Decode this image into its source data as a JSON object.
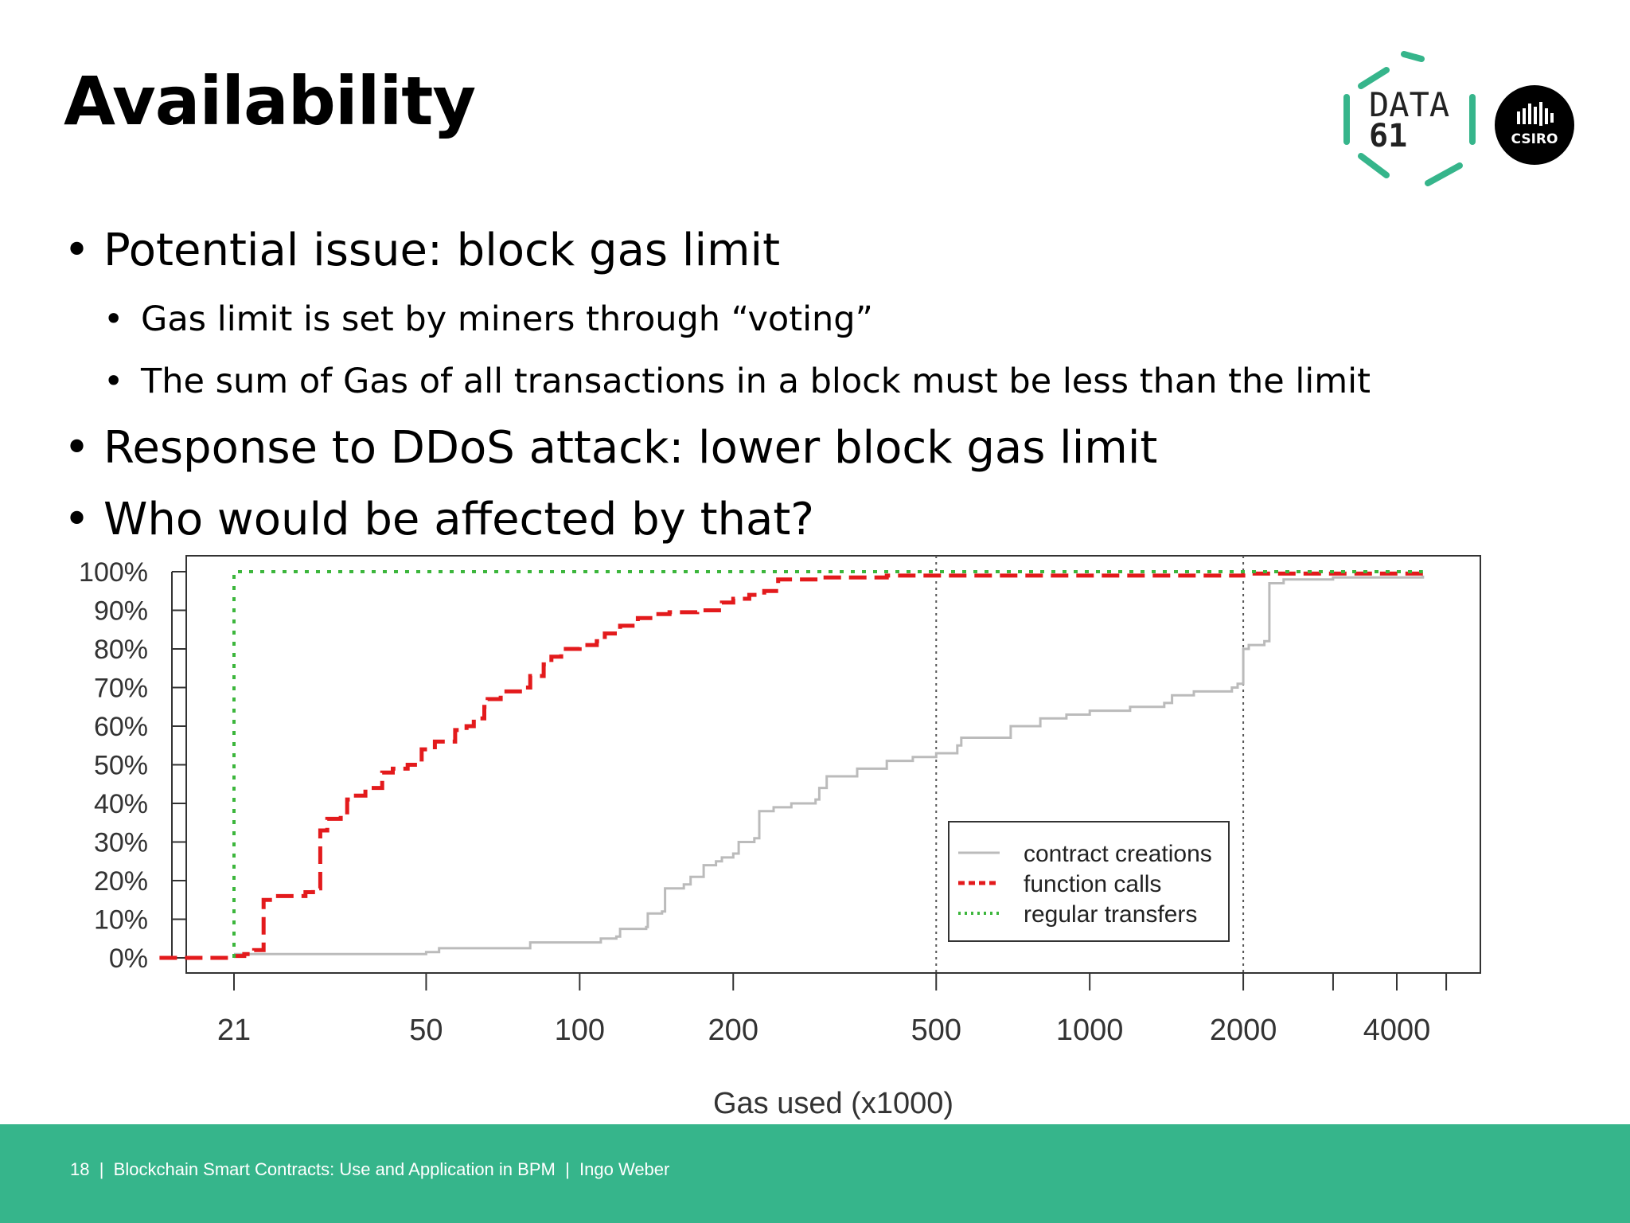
{
  "slide": {
    "title": "Availability",
    "bullets": [
      {
        "level": 1,
        "text": "Potential issue: block gas limit"
      },
      {
        "level": 2,
        "text": "Gas limit is set by miners through “voting”"
      },
      {
        "level": 2,
        "text": "The sum of Gas of all transactions in a block must be less than the limit"
      },
      {
        "level": 1,
        "text": "Response to DDoS attack: lower block gas limit"
      },
      {
        "level": 1,
        "text": "Who would be affected by that?"
      }
    ],
    "bullet_glyph": "•",
    "logos": {
      "data61_line1": "DATA",
      "data61_line2": "61",
      "csiro": "CSIRO"
    },
    "footer": {
      "page_number": "18",
      "text": "Blockchain Smart Contracts: Use and Application in BPM",
      "author": "Ingo Weber",
      "separator": "|"
    },
    "colors": {
      "footer_bg": "#36b58b",
      "data61_green": "#36b58b",
      "csiro_black": "#000000"
    }
  },
  "chart_data": {
    "type": "line",
    "title": "",
    "xlabel": "Gas used (x1000)",
    "ylabel": "",
    "x_scale": "log",
    "xlim": [
      15,
      5000
    ],
    "ylim": [
      0,
      100
    ],
    "x_ticks": [
      21,
      50,
      100,
      200,
      500,
      1000,
      2000,
      4000
    ],
    "x_minor_ticks": [
      3000,
      5000
    ],
    "y_ticks": [
      0,
      10,
      20,
      30,
      40,
      50,
      60,
      70,
      80,
      90,
      100
    ],
    "y_tick_labels": [
      "0%",
      "10%",
      "20%",
      "30%",
      "40%",
      "50%",
      "60%",
      "70%",
      "80%",
      "90%",
      "100%"
    ],
    "reference_lines_x": [
      500,
      2000
    ],
    "legend_position": "bottom-right",
    "series": [
      {
        "name": "contract creations",
        "color": "#bbbbbb",
        "style": "solid",
        "points": [
          [
            21,
            1
          ],
          [
            40,
            1
          ],
          [
            50,
            1.5
          ],
          [
            53,
            2.5
          ],
          [
            80,
            4
          ],
          [
            110,
            5
          ],
          [
            118,
            5.5
          ],
          [
            120,
            7.5
          ],
          [
            135,
            8
          ],
          [
            136,
            11.5
          ],
          [
            145,
            12
          ],
          [
            147,
            18
          ],
          [
            160,
            19
          ],
          [
            165,
            21
          ],
          [
            170,
            21
          ],
          [
            175,
            24
          ],
          [
            185,
            25
          ],
          [
            190,
            26
          ],
          [
            200,
            27
          ],
          [
            205,
            30
          ],
          [
            220,
            31
          ],
          [
            225,
            38
          ],
          [
            240,
            39
          ],
          [
            260,
            40
          ],
          [
            290,
            41
          ],
          [
            295,
            44
          ],
          [
            305,
            47
          ],
          [
            350,
            49
          ],
          [
            400,
            51
          ],
          [
            450,
            52
          ],
          [
            500,
            53
          ],
          [
            550,
            55
          ],
          [
            560,
            57
          ],
          [
            700,
            60
          ],
          [
            800,
            62
          ],
          [
            900,
            63
          ],
          [
            1000,
            64
          ],
          [
            1200,
            65
          ],
          [
            1400,
            66
          ],
          [
            1450,
            68
          ],
          [
            1600,
            69
          ],
          [
            1900,
            70
          ],
          [
            1950,
            71
          ],
          [
            2000,
            80
          ],
          [
            2050,
            81
          ],
          [
            2200,
            82
          ],
          [
            2250,
            97
          ],
          [
            2400,
            98
          ],
          [
            3000,
            98.5
          ],
          [
            4500,
            99
          ]
        ]
      },
      {
        "name": "function calls",
        "color": "#e31a1c",
        "style": "dashed",
        "points": [
          [
            15,
            0
          ],
          [
            20,
            0
          ],
          [
            21,
            0.5
          ],
          [
            22,
            1
          ],
          [
            23,
            2
          ],
          [
            24,
            15
          ],
          [
            25,
            16
          ],
          [
            28,
            16
          ],
          [
            29,
            17
          ],
          [
            30,
            18
          ],
          [
            31,
            33
          ],
          [
            32,
            36
          ],
          [
            34,
            37
          ],
          [
            35,
            41
          ],
          [
            36,
            42
          ],
          [
            38,
            44
          ],
          [
            41,
            48
          ],
          [
            43,
            49
          ],
          [
            46,
            50
          ],
          [
            49,
            54
          ],
          [
            52,
            56
          ],
          [
            57,
            59
          ],
          [
            60,
            60
          ],
          [
            62,
            62
          ],
          [
            65,
            65
          ],
          [
            66,
            67
          ],
          [
            70,
            69
          ],
          [
            78,
            70
          ],
          [
            80,
            73
          ],
          [
            85,
            76
          ],
          [
            88,
            78
          ],
          [
            92,
            80
          ],
          [
            100,
            81
          ],
          [
            108,
            82
          ],
          [
            112,
            84
          ],
          [
            120,
            86
          ],
          [
            125,
            86
          ],
          [
            130,
            88
          ],
          [
            140,
            89
          ],
          [
            150,
            89.5
          ],
          [
            170,
            90
          ],
          [
            190,
            92
          ],
          [
            200,
            93
          ],
          [
            215,
            94
          ],
          [
            230,
            95
          ],
          [
            245,
            98
          ],
          [
            300,
            98.5
          ],
          [
            400,
            99
          ],
          [
            500,
            99
          ],
          [
            2000,
            99.5
          ],
          [
            4500,
            99.8
          ]
        ]
      },
      {
        "name": "regular transfers",
        "color": "#3cb63c",
        "style": "dotted",
        "points": [
          [
            21,
            0
          ],
          [
            21,
            100
          ],
          [
            4500,
            100
          ]
        ]
      }
    ]
  }
}
